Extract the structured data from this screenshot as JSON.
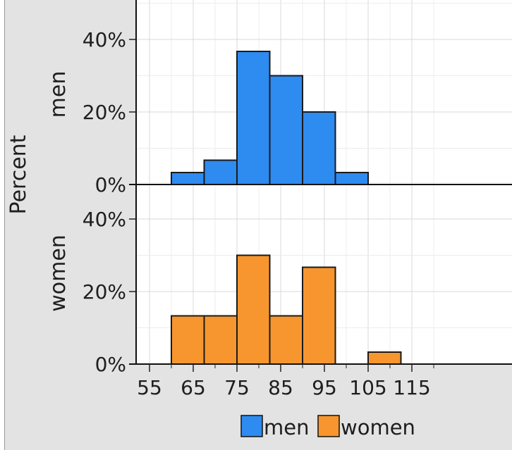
{
  "chart_data": {
    "type": "bar",
    "subtype": "faceted-histogram",
    "y_axis_title": "Percent",
    "bins": [
      [
        60,
        67.5
      ],
      [
        67.5,
        75
      ],
      [
        75,
        82.5
      ],
      [
        82.5,
        90
      ],
      [
        90,
        97.5
      ],
      [
        97.5,
        105
      ],
      [
        105,
        112.5
      ],
      [
        112.5,
        120
      ]
    ],
    "x_ticks": [
      55,
      65,
      75,
      85,
      95,
      105,
      115
    ],
    "x_tick_labels": [
      "55",
      "65",
      "75",
      "85",
      "95",
      "105",
      "115"
    ],
    "xlim": [
      51,
      121
    ],
    "y_ticks": [
      0,
      20,
      40
    ],
    "y_tick_labels": [
      "0%",
      "20%",
      "40%"
    ],
    "ylim": [
      0,
      50
    ],
    "grid": true,
    "panels": [
      {
        "name": "men",
        "color": "#2e8bf0",
        "values": [
          {
            "x0": 60,
            "x1": 67.5,
            "y": 3.3
          },
          {
            "x0": 67.5,
            "x1": 75,
            "y": 6.7
          },
          {
            "x0": 75,
            "x1": 82.5,
            "y": 36.7
          },
          {
            "x0": 82.5,
            "x1": 90,
            "y": 30.0
          },
          {
            "x0": 90,
            "x1": 97.5,
            "y": 20.0
          },
          {
            "x0": 97.5,
            "x1": 105,
            "y": 3.3
          }
        ]
      },
      {
        "name": "women",
        "color": "#f7962e",
        "values": [
          {
            "x0": 60,
            "x1": 67.5,
            "y": 13.3
          },
          {
            "x0": 67.5,
            "x1": 75,
            "y": 13.3
          },
          {
            "x0": 75,
            "x1": 82.5,
            "y": 30.0
          },
          {
            "x0": 82.5,
            "x1": 90,
            "y": 13.3
          },
          {
            "x0": 90,
            "x1": 97.5,
            "y": 26.7
          },
          {
            "x0": 105,
            "x1": 112.5,
            "y": 3.3
          }
        ]
      }
    ],
    "legend": {
      "placement": "bottom",
      "entries": [
        {
          "label": "men",
          "color": "#2e8bf0"
        },
        {
          "label": "women",
          "color": "#f7962e"
        }
      ]
    }
  }
}
